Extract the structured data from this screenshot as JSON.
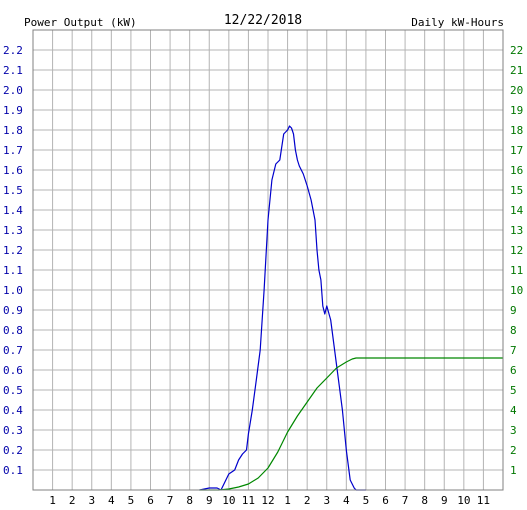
{
  "chart_data": {
    "type": "line",
    "title": "12/22/2018",
    "left_axis_label": "Power Output (kW)",
    "right_axis_label": "Daily kW-Hours",
    "x_ticks": [
      "1",
      "2",
      "3",
      "4",
      "5",
      "6",
      "7",
      "8",
      "9",
      "10",
      "11",
      "12",
      "1",
      "2",
      "3",
      "4",
      "5",
      "6",
      "7",
      "8",
      "9",
      "10",
      "11"
    ],
    "x_range_hours": [
      0,
      24
    ],
    "left_ylim": [
      0,
      2.3
    ],
    "left_ticks": [
      "0.1",
      "0.2",
      "0.3",
      "0.4",
      "0.5",
      "0.6",
      "0.7",
      "0.8",
      "0.9",
      "1.0",
      "1.1",
      "1.2",
      "1.3",
      "1.4",
      "1.5",
      "1.6",
      "1.7",
      "1.8",
      "1.9",
      "2.0",
      "2.1",
      "2.2"
    ],
    "right_ylim": [
      0,
      23
    ],
    "right_ticks": [
      "1",
      "2",
      "3",
      "4",
      "5",
      "6",
      "7",
      "8",
      "9",
      "10",
      "11",
      "12",
      "13",
      "14",
      "15",
      "16",
      "17",
      "18",
      "19",
      "20",
      "21",
      "22"
    ],
    "grid": true,
    "colors": {
      "power": "#0000cc",
      "energy": "#008800",
      "grid": "#b4b4b4",
      "left_text": "#0000aa",
      "right_text": "#007700"
    },
    "series": [
      {
        "axis": "left",
        "x_hours": [
          8.5,
          9.0,
          9.4,
          9.6,
          9.8,
          10.0,
          10.3,
          10.5,
          10.7,
          10.9,
          11.0,
          11.2,
          11.4,
          11.6,
          11.8,
          12.0,
          12.2,
          12.4,
          12.6,
          12.8,
          13.0,
          13.1,
          13.2,
          13.3,
          13.4,
          13.5,
          13.6,
          13.8,
          14.0,
          14.2,
          14.4,
          14.5,
          14.6,
          14.7,
          14.8,
          14.9,
          15.0,
          15.2,
          15.4,
          15.6,
          15.8,
          16.0,
          16.2,
          16.4,
          16.5,
          16.6,
          16.7,
          17.0
        ],
        "values": [
          0.0,
          0.01,
          0.01,
          0.0,
          0.04,
          0.08,
          0.1,
          0.15,
          0.18,
          0.2,
          0.28,
          0.4,
          0.55,
          0.7,
          1.0,
          1.35,
          1.55,
          1.63,
          1.65,
          1.78,
          1.8,
          1.82,
          1.81,
          1.78,
          1.7,
          1.65,
          1.62,
          1.58,
          1.52,
          1.45,
          1.35,
          1.2,
          1.1,
          1.05,
          0.92,
          0.88,
          0.92,
          0.85,
          0.7,
          0.55,
          0.4,
          0.2,
          0.05,
          0.01,
          0.0,
          0.0,
          0.0,
          0.0
        ]
      },
      {
        "axis": "right",
        "x_hours": [
          8.5,
          9.5,
          10.0,
          10.5,
          11.0,
          11.5,
          12.0,
          12.5,
          13.0,
          13.5,
          14.0,
          14.5,
          15.0,
          15.5,
          16.0,
          16.3,
          16.5,
          16.7,
          17.0,
          24.0
        ],
        "values": [
          0.0,
          0.0,
          0.05,
          0.15,
          0.3,
          0.6,
          1.1,
          1.9,
          2.9,
          3.7,
          4.4,
          5.1,
          5.6,
          6.1,
          6.4,
          6.55,
          6.6,
          6.6,
          6.6,
          6.6
        ]
      }
    ]
  }
}
